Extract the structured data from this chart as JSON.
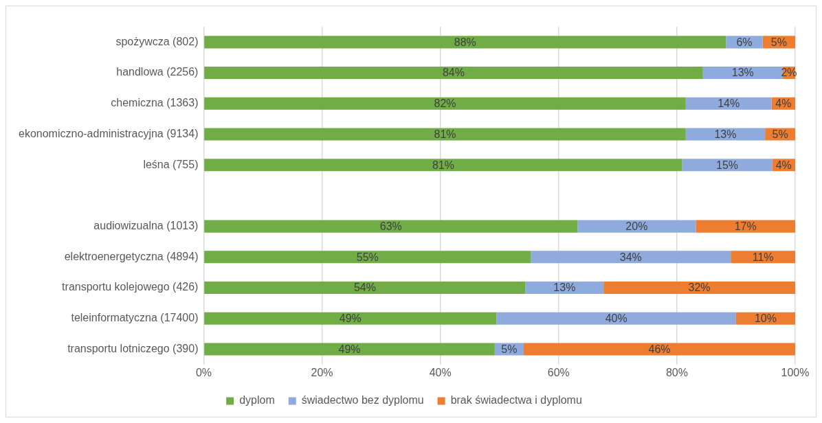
{
  "chart_data": {
    "type": "bar",
    "orientation": "horizontal",
    "stacked": true,
    "categories": [
      "spożywcza (802)",
      "handlowa (2256)",
      "chemiczna (1363)",
      "ekonomiczno-administracyjna (9134)",
      "leśna (755)",
      null,
      "audiowizualna (1013)",
      "elektroenergetyczna (4894)",
      "transportu kolejowego (426)",
      "teleinformatyczna (17400)",
      "transportu lotniczego (390)"
    ],
    "series": [
      {
        "name": "dyplom",
        "color": "#70ad47",
        "values": [
          88.3,
          84.4,
          81.5,
          81.5,
          80.9,
          null,
          63.2,
          55.3,
          54.4,
          49.5,
          49.2
        ],
        "value_labels": [
          "88%",
          "84%",
          "82%",
          "81%",
          "81%",
          null,
          "63%",
          "55%",
          "54%",
          "49%",
          "49%"
        ]
      },
      {
        "name": "świadectwo bez dyplomu",
        "color": "#8faadc",
        "values": [
          6.2,
          13.5,
          14.5,
          13.4,
          15.2,
          null,
          20.0,
          33.8,
          13.2,
          40.5,
          4.9
        ],
        "value_labels": [
          "6%",
          "13%",
          "14%",
          "13%",
          "15%",
          null,
          "20%",
          "34%",
          "13%",
          "40%",
          "5%"
        ]
      },
      {
        "name": "brak świadectwa i dyplomu",
        "color": "#ed7d31",
        "values": [
          5.5,
          2.1,
          4.0,
          5.1,
          3.9,
          null,
          16.8,
          10.9,
          32.4,
          10.0,
          45.9
        ],
        "value_labels": [
          "5%",
          "2%",
          "4%",
          "5%",
          "4%",
          null,
          "17%",
          "11%",
          "32%",
          "10%",
          "46%"
        ]
      }
    ],
    "xlim": [
      0,
      100
    ],
    "xticks": [
      {
        "value": 0,
        "label": "0%"
      },
      {
        "value": 20,
        "label": "20%"
      },
      {
        "value": 40,
        "label": "40%"
      },
      {
        "value": 60,
        "label": "60%"
      },
      {
        "value": 80,
        "label": "80%"
      },
      {
        "value": 100,
        "label": "100%"
      }
    ],
    "grid": "x",
    "legend": "bottom"
  }
}
